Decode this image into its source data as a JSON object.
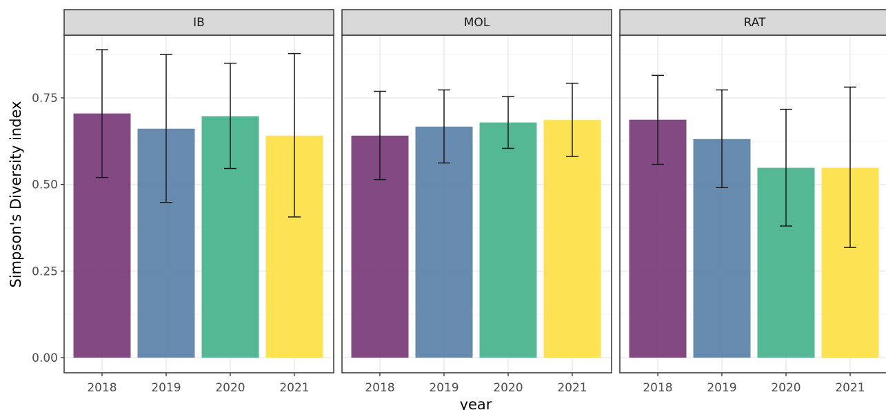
{
  "chart_data": {
    "type": "bar",
    "xlabel": "year",
    "ylabel": "Simpson's Diversity index",
    "ylim": [
      0,
      0.9
    ],
    "y_ticks": [
      "0.00",
      "0.25",
      "0.50",
      "0.75"
    ],
    "categories": [
      "2018",
      "2019",
      "2020",
      "2021"
    ],
    "colors": [
      "#7a3b7a",
      "#5a82a8",
      "#48b38d",
      "#fde047"
    ],
    "grid": true,
    "legend": "none",
    "facets": [
      {
        "name": "IB",
        "values": [
          0.705,
          0.661,
          0.697,
          0.641
        ],
        "err_low": [
          0.52,
          0.448,
          0.546,
          0.406
        ],
        "err_high": [
          0.889,
          0.875,
          0.85,
          0.878
        ]
      },
      {
        "name": "MOL",
        "values": [
          0.641,
          0.667,
          0.679,
          0.686
        ],
        "err_low": [
          0.514,
          0.562,
          0.604,
          0.581
        ],
        "err_high": [
          0.769,
          0.773,
          0.754,
          0.792
        ]
      },
      {
        "name": "RAT",
        "values": [
          0.687,
          0.631,
          0.548,
          0.548
        ],
        "err_low": [
          0.558,
          0.491,
          0.38,
          0.318
        ],
        "err_high": [
          0.815,
          0.773,
          0.717,
          0.781
        ]
      }
    ]
  }
}
